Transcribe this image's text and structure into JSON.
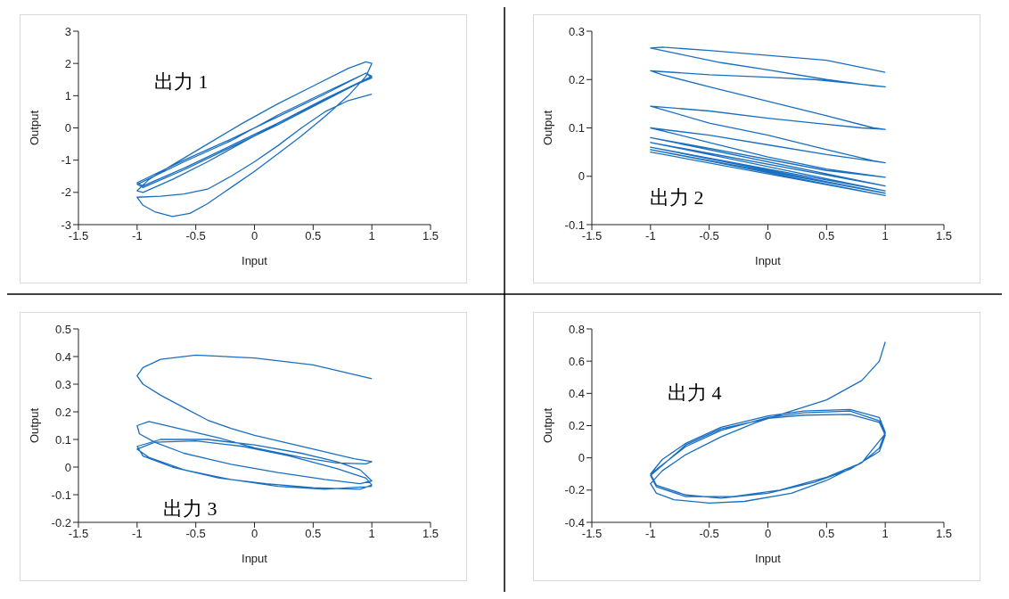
{
  "chart_data": [
    {
      "type": "line",
      "xlabel": "Input",
      "ylabel": "Output",
      "xlim": [
        -1.5,
        1.5
      ],
      "xticks": [
        -1.5,
        -1,
        -0.5,
        0,
        0.5,
        1,
        1.5
      ],
      "ylim": [
        -3,
        3
      ],
      "yticks": [
        -3,
        -2,
        -1,
        0,
        1,
        2,
        3
      ],
      "annotations": [
        "出力 1"
      ],
      "series": [
        {
          "color": "#1a6fc0",
          "x": [
            1,
            0.8,
            0.6,
            0.4,
            0.2,
            0,
            -0.2,
            -0.4,
            -0.6,
            -0.8,
            -1,
            -0.95,
            -0.85,
            -0.7,
            -0.55,
            -0.4,
            -0.2,
            0,
            0.2,
            0.4,
            0.6,
            0.8,
            0.95,
            1,
            0.95,
            0.8,
            0.5,
            0.2,
            -0.1,
            -0.4,
            -0.7,
            -0.9,
            -1,
            -0.95,
            -0.7,
            -0.4,
            -0.1,
            0.2,
            0.5,
            0.8,
            1,
            0.95,
            0.6,
            0.2,
            -0.2,
            -0.6,
            -1,
            -0.95,
            -0.6,
            -0.2,
            0.2,
            0.6,
            1,
            0.95,
            0.6,
            0.2,
            -0.2,
            -0.6,
            -1,
            -0.95,
            -0.6,
            -0.2,
            0.2,
            0.6,
            1
          ],
          "values": [
            1.05,
            0.85,
            0.5,
            0,
            -0.55,
            -1.05,
            -1.5,
            -1.9,
            -2.05,
            -2.12,
            -2.15,
            -2.4,
            -2.6,
            -2.75,
            -2.65,
            -2.35,
            -1.85,
            -1.35,
            -0.8,
            -0.25,
            0.35,
            1,
            1.6,
            2,
            2.05,
            1.85,
            1.3,
            0.75,
            0.15,
            -0.5,
            -1.15,
            -1.6,
            -1.95,
            -2,
            -1.6,
            -1.05,
            -0.45,
            0.15,
            0.7,
            1.25,
            1.55,
            1.7,
            1.1,
            0.4,
            -0.4,
            -1.05,
            -1.75,
            -1.85,
            -1.3,
            -0.6,
            0.1,
            0.85,
            1.6,
            1.7,
            1.05,
            0.35,
            -0.35,
            -1,
            -1.7,
            -1.8,
            -1.25,
            -0.55,
            0.15,
            0.9,
            1.6
          ]
        }
      ]
    },
    {
      "type": "line",
      "xlabel": "Input",
      "ylabel": "Output",
      "xlim": [
        -1.5,
        1.5
      ],
      "xticks": [
        -1.5,
        -1,
        -0.5,
        0,
        0.5,
        1,
        1.5
      ],
      "ylim": [
        -0.1,
        0.3
      ],
      "yticks": [
        -0.1,
        0,
        0.1,
        0.2,
        0.3
      ],
      "annotations": [
        "出力 2"
      ],
      "series": [
        {
          "color": "#1a6fc0",
          "x": [
            1,
            0.5,
            0,
            -0.5,
            -0.9,
            -1,
            -0.8,
            -0.4,
            0,
            0.5,
            0.9,
            1,
            0.8,
            0.4,
            0,
            -0.5,
            -1,
            -0.9,
            -0.5,
            0,
            0.5,
            0.9,
            1,
            0.8,
            0.4,
            0,
            -0.5,
            -1,
            -0.9,
            -0.5,
            0,
            0.5,
            0.9,
            1,
            0.5,
            0,
            -0.5,
            -1,
            -0.5,
            0,
            0.5,
            1,
            0.5,
            0,
            -0.5,
            -1,
            1,
            -1,
            1,
            -1,
            1,
            -1,
            1,
            -1,
            1
          ],
          "values": [
            0.215,
            0.24,
            0.25,
            0.26,
            0.267,
            0.265,
            0.255,
            0.235,
            0.22,
            0.2,
            0.187,
            0.185,
            0.19,
            0.2,
            0.205,
            0.21,
            0.218,
            0.21,
            0.185,
            0.155,
            0.125,
            0.1,
            0.097,
            0.1,
            0.11,
            0.12,
            0.135,
            0.145,
            0.138,
            0.11,
            0.085,
            0.055,
            0.032,
            0.028,
            0.045,
            0.065,
            0.085,
            0.1,
            0.07,
            0.04,
            0.015,
            -0.002,
            0.012,
            0.035,
            0.058,
            0.08,
            -0.02,
            0.07,
            -0.03,
            0.06,
            -0.035,
            0.055,
            -0.04,
            0.05,
            -0.04
          ]
        }
      ]
    },
    {
      "type": "line",
      "xlabel": "Input",
      "ylabel": "Output",
      "xlim": [
        -1.5,
        1.5
      ],
      "xticks": [
        -1.5,
        -1,
        -0.5,
        0,
        0.5,
        1,
        1.5
      ],
      "ylim": [
        -0.2,
        0.5
      ],
      "yticks": [
        -0.2,
        -0.1,
        0,
        0.1,
        0.2,
        0.3,
        0.4,
        0.5
      ],
      "annotations": [
        "出力 3"
      ],
      "series": [
        {
          "color": "#1a6fc0",
          "x": [
            1,
            0.5,
            0,
            -0.5,
            -0.8,
            -0.95,
            -1,
            -0.95,
            -0.8,
            -0.6,
            -0.4,
            -0.2,
            0,
            0.3,
            0.6,
            0.85,
            1,
            0.95,
            0.7,
            0.4,
            0,
            -0.3,
            -0.6,
            -0.9,
            -1,
            -0.98,
            -0.85,
            -0.6,
            -0.2,
            0.2,
            0.6,
            0.9,
            1,
            0.9,
            0.7,
            0.4,
            0,
            -0.4,
            -0.8,
            -1,
            -0.95,
            -0.7,
            -0.3,
            0.1,
            0.5,
            0.9,
            1,
            0.95,
            0.7,
            0.3,
            -0.1,
            -0.5,
            -0.85,
            -1,
            -0.9,
            -0.6,
            -0.2,
            0.2,
            0.6,
            1
          ],
          "values": [
            0.32,
            0.37,
            0.395,
            0.405,
            0.39,
            0.36,
            0.33,
            0.3,
            0.26,
            0.215,
            0.17,
            0.14,
            0.115,
            0.085,
            0.055,
            0.03,
            0.02,
            0.012,
            0.015,
            0.035,
            0.07,
            0.105,
            0.135,
            0.165,
            0.15,
            0.12,
            0.09,
            0.05,
            0.01,
            -0.02,
            -0.045,
            -0.06,
            -0.05,
            -0.01,
            0.02,
            0.05,
            0.08,
            0.1,
            0.1,
            0.075,
            0.04,
            0,
            -0.04,
            -0.06,
            -0.075,
            -0.08,
            -0.065,
            -0.04,
            -0.005,
            0.04,
            0.075,
            0.095,
            0.09,
            0.065,
            0.035,
            -0.01,
            -0.045,
            -0.07,
            -0.08,
            -0.07
          ]
        }
      ]
    },
    {
      "type": "line",
      "xlabel": "Input",
      "ylabel": "Output",
      "xlim": [
        -1.5,
        1.5
      ],
      "xticks": [
        -1.5,
        -1,
        -0.5,
        0,
        0.5,
        1,
        1.5
      ],
      "ylim": [
        -0.4,
        0.8
      ],
      "yticks": [
        -0.4,
        -0.2,
        0,
        0.2,
        0.4,
        0.6,
        0.8
      ],
      "annotations": [
        "出力 4"
      ],
      "series": [
        {
          "color": "#1a6fc0",
          "x": [
            1,
            0.95,
            0.8,
            0.5,
            0.2,
            -0.1,
            -0.4,
            -0.7,
            -0.9,
            -1,
            -0.95,
            -0.8,
            -0.5,
            -0.2,
            0.2,
            0.5,
            0.8,
            0.95,
            1,
            0.95,
            0.7,
            0.3,
            0,
            -0.4,
            -0.7,
            -0.9,
            -1,
            -0.95,
            -0.7,
            -0.4,
            0,
            0.4,
            0.7,
            0.95,
            1,
            0.95,
            0.7,
            0.3,
            0,
            -0.4,
            -0.7,
            -1,
            -0.95,
            -0.7,
            -0.3,
            0.1,
            0.5,
            0.8,
            1,
            0.95,
            0.7,
            0.3,
            0,
            -0.4,
            -0.7,
            -1
          ],
          "values": [
            0.72,
            0.6,
            0.48,
            0.36,
            0.29,
            0.22,
            0.13,
            0.02,
            -0.08,
            -0.16,
            -0.22,
            -0.26,
            -0.28,
            -0.27,
            -0.22,
            -0.14,
            -0.03,
            0.06,
            0.16,
            0.25,
            0.3,
            0.29,
            0.26,
            0.19,
            0.09,
            -0.01,
            -0.1,
            -0.17,
            -0.23,
            -0.25,
            -0.22,
            -0.15,
            -0.07,
            0.04,
            0.14,
            0.22,
            0.27,
            0.265,
            0.245,
            0.18,
            0.08,
            -0.11,
            -0.18,
            -0.24,
            -0.24,
            -0.2,
            -0.12,
            -0.03,
            0.15,
            0.23,
            0.29,
            0.28,
            0.25,
            0.17,
            0.07,
            -0.1
          ]
        }
      ]
    }
  ]
}
